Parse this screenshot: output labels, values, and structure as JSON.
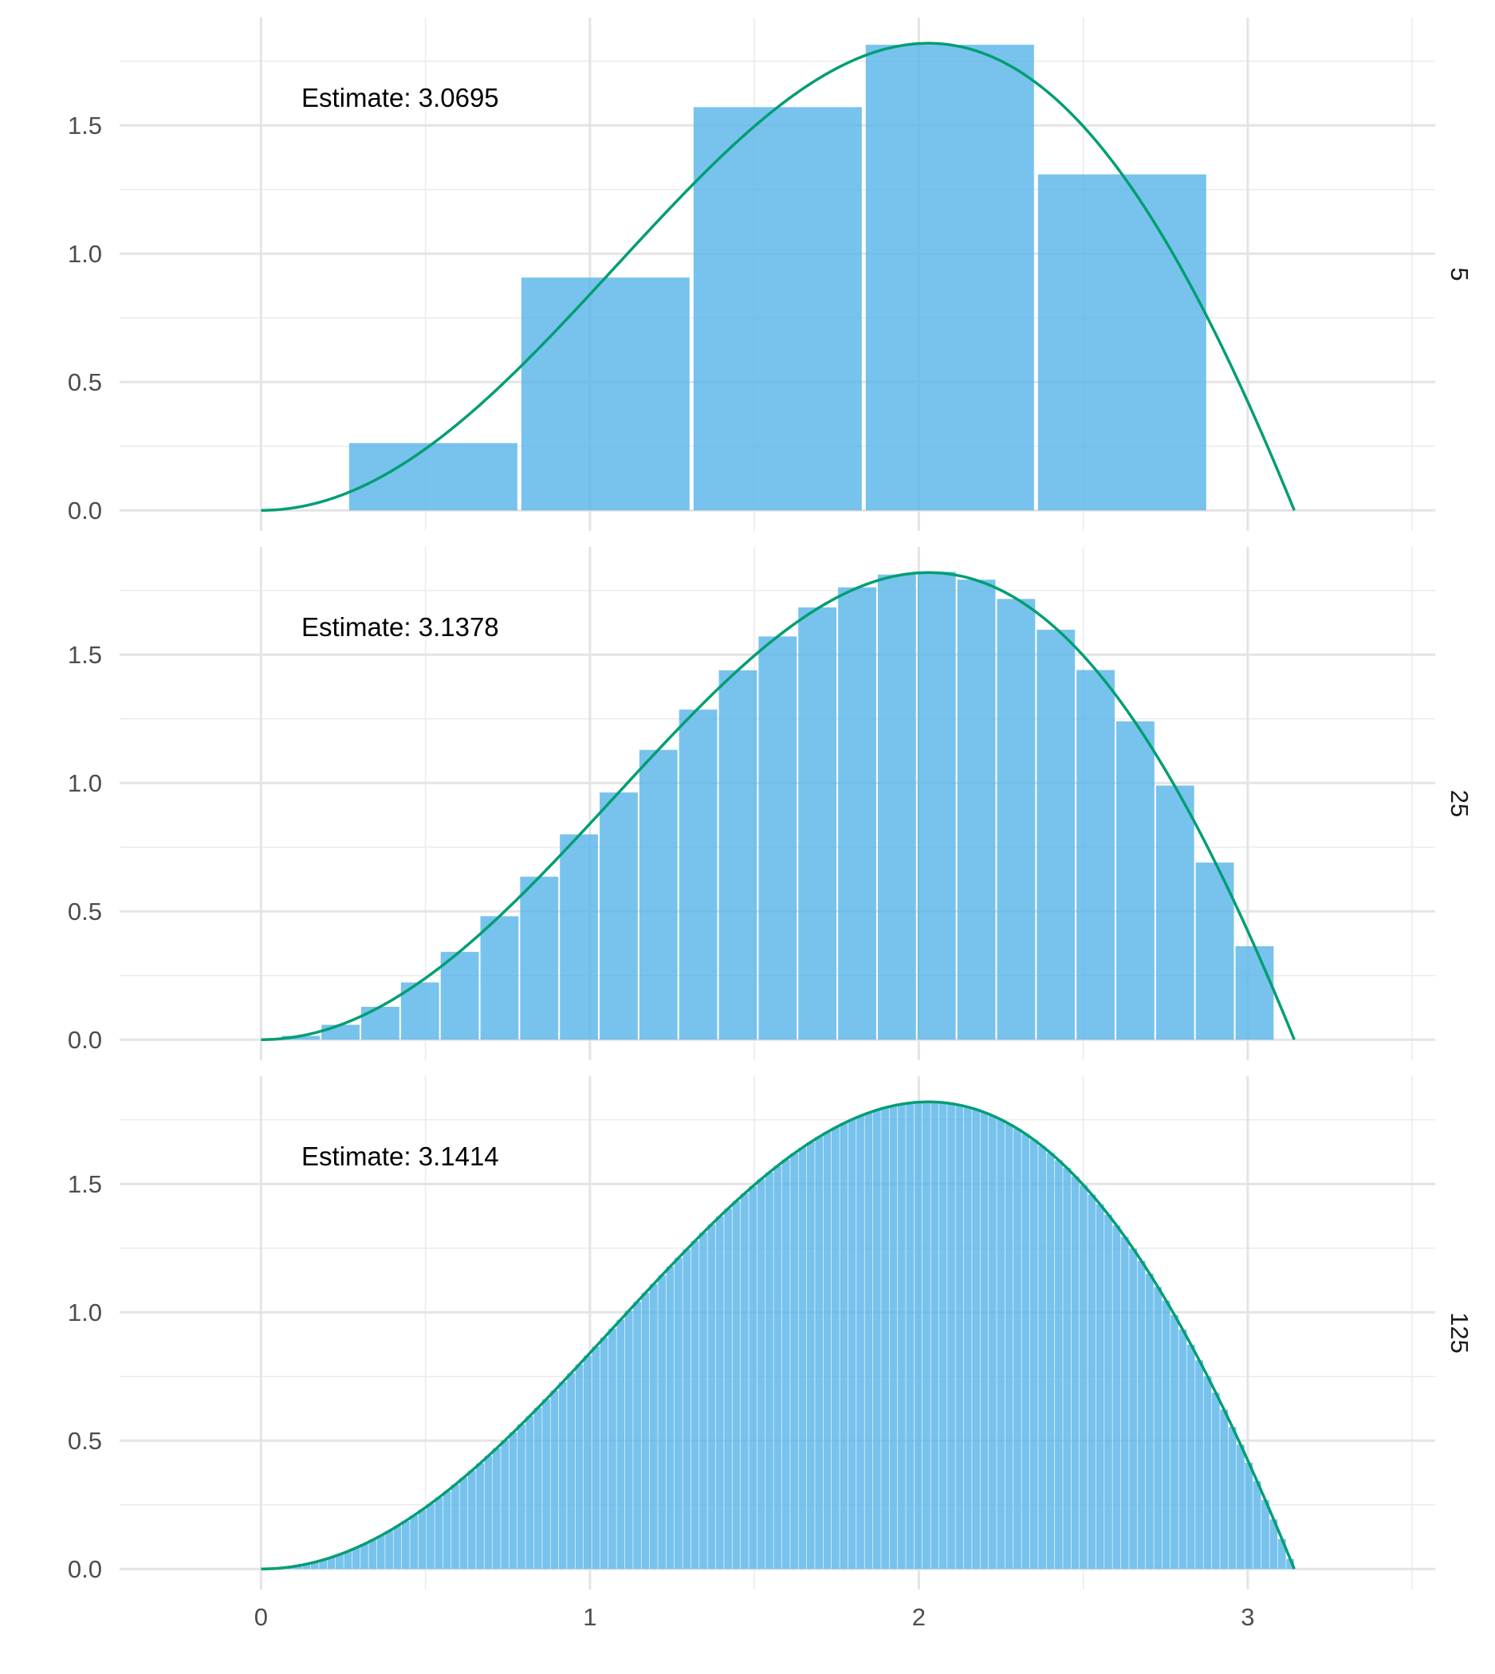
{
  "chart_data": {
    "type": "bar",
    "title": "",
    "xlabel": "",
    "ylabel": "",
    "xlim": [
      -0.43,
      3.57
    ],
    "ylim": [
      -0.08,
      1.92
    ],
    "x_ticks": [
      0,
      1,
      2,
      3
    ],
    "x_tick_labels": [
      "0",
      "1",
      "2",
      "3"
    ],
    "y_ticks": [
      0,
      0.5,
      1,
      1.5
    ],
    "y_tick_labels": [
      "0.0",
      "0.5",
      "1.0",
      "1.5"
    ],
    "grid": true,
    "legend": "none",
    "bar_color": "#56B4E9",
    "curve_color": "#009E73",
    "curve": {
      "formula": "x*sin(x)",
      "x_range": [
        0,
        3.14159
      ]
    },
    "panels": [
      {
        "strip_label": "5",
        "annotation": "Estimate: 3.0695",
        "bins": 5,
        "bar_x": [
          0.5236,
          1.0472,
          1.5708,
          2.0944,
          2.618
        ],
        "bar_width": 0.5236,
        "values": [
          0.262,
          0.907,
          1.571,
          1.814,
          1.309
        ]
      },
      {
        "strip_label": "25",
        "annotation": "Estimate: 3.1378",
        "bins": 25,
        "bar_x": [
          0.1208,
          0.2417,
          0.3625,
          0.4833,
          0.6042,
          0.725,
          0.8458,
          0.9666,
          1.0875,
          1.2083,
          1.3291,
          1.45,
          1.5708,
          1.6916,
          1.8125,
          1.9333,
          2.0541,
          2.175,
          2.2958,
          2.4166,
          2.5374,
          2.6583,
          2.7791,
          2.8999,
          3.0208
        ],
        "bar_width": 0.1208,
        "values": [
          0.015,
          0.058,
          0.128,
          0.223,
          0.342,
          0.481,
          0.635,
          0.8,
          0.963,
          1.129,
          1.286,
          1.439,
          1.571,
          1.684,
          1.762,
          1.812,
          1.823,
          1.792,
          1.717,
          1.597,
          1.44,
          1.24,
          0.99,
          0.69,
          0.364
        ]
      },
      {
        "strip_label": "125",
        "annotation": "Estimate: 3.1414",
        "bins": 125,
        "values": "x*sin(x) sampled at 125 equal bins on [0, π]"
      }
    ]
  }
}
